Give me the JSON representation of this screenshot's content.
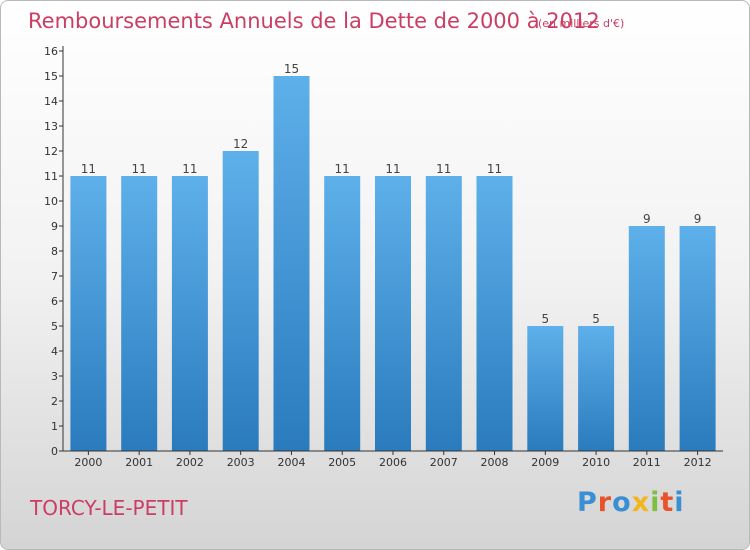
{
  "colors": {
    "title": "#cc3d63",
    "bar_top": "#5eb0ea",
    "bar_bottom": "#2a7bbd",
    "axis": "#333333"
  },
  "branding": {
    "commune": "TORCY-LE-PETIT",
    "logo": [
      "P",
      "r",
      "o",
      "x",
      "i",
      "t",
      "i"
    ],
    "logo_colors": [
      "#3a8fd4",
      "#e8532b",
      "#3a8fd4",
      "#f2b51c",
      "#7fbf3f",
      "#e8532b",
      "#3a8fd4"
    ]
  },
  "chart_data": {
    "type": "bar",
    "title": "Remboursements Annuels de la Dette de 2000 à 2012",
    "subtitle": "(en milliers d'€)",
    "xlabel": "",
    "ylabel": "",
    "categories": [
      "2000",
      "2001",
      "2002",
      "2003",
      "2004",
      "2005",
      "2006",
      "2007",
      "2008",
      "2009",
      "2010",
      "2011",
      "2012"
    ],
    "values": [
      11,
      11,
      11,
      12,
      15,
      11,
      11,
      11,
      11,
      5,
      5,
      9,
      9
    ],
    "value_labels": [
      "11",
      "11",
      "11",
      "12",
      "15",
      "11",
      "11",
      "11",
      "11",
      "5",
      "5",
      "9",
      "9"
    ],
    "ylim": [
      0,
      16
    ],
    "yticks": [
      "0",
      "1",
      "2",
      "3",
      "4",
      "5",
      "6",
      "7",
      "8",
      "9",
      "10",
      "11",
      "12",
      "13",
      "14",
      "15",
      "16"
    ],
    "grid": false,
    "legend": "none"
  }
}
